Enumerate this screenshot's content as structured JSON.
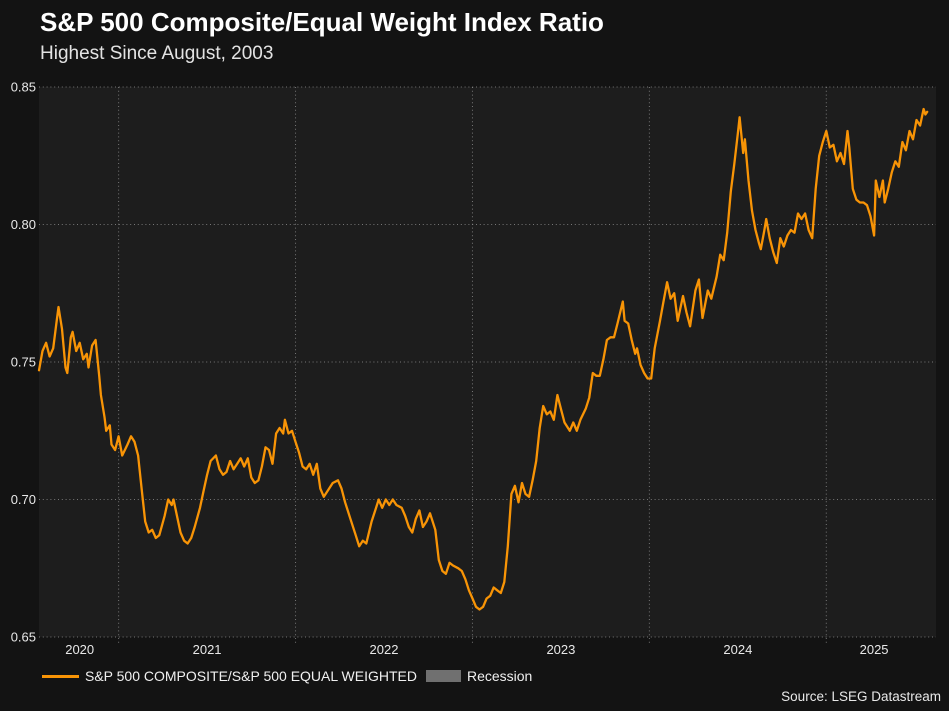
{
  "header": {
    "title": "S&P 500 Composite/Equal Weight Index Ratio",
    "subtitle": "Highest Since August, 2003"
  },
  "legend": {
    "series_label": "S&P 500 COMPOSITE/S&P 500 EQUAL WEIGHTED",
    "recession_label": "Recession"
  },
  "source": "Source: LSEG Datastream",
  "colors": {
    "line": "#F89406",
    "recession_swatch": "#707070",
    "page_bg": "#131313",
    "plot_bg": "#1D1D1D",
    "grid": "#9E9E9E",
    "tick_text": "#E8E8E8",
    "title_text": "#FFFFFF"
  },
  "chart_data": {
    "type": "line",
    "title": "S&P 500 Composite/Equal Weight Index Ratio",
    "subtitle": "Highest Since August, 2003",
    "xlabel": "",
    "ylabel": "",
    "grid": "dotted",
    "legend_position": "bottom-left",
    "ylim": [
      0.65,
      0.85
    ],
    "xlim": [
      2020.55,
      2025.62
    ],
    "y_ticks": [
      0.85,
      0.8,
      0.75,
      0.7,
      0.65
    ],
    "x_gridline_years": [
      2021,
      2022,
      2023,
      2024,
      2025
    ],
    "x_tick_labels": [
      {
        "label": "2020",
        "t": 2020.78
      },
      {
        "label": "2021",
        "t": 2021.5
      },
      {
        "label": "2022",
        "t": 2022.5
      },
      {
        "label": "2023",
        "t": 2023.5
      },
      {
        "label": "2024",
        "t": 2024.5
      },
      {
        "label": "2025",
        "t": 2025.27
      }
    ],
    "series": [
      {
        "name": "S&P 500 COMPOSITE/S&P 500 EQUAL WEIGHTED",
        "color": "#F89406",
        "points": [
          [
            2020.55,
            0.747
          ],
          [
            2020.57,
            0.754
          ],
          [
            2020.59,
            0.757
          ],
          [
            2020.61,
            0.752
          ],
          [
            2020.63,
            0.755
          ],
          [
            2020.65,
            0.765
          ],
          [
            2020.66,
            0.77
          ],
          [
            2020.68,
            0.762
          ],
          [
            2020.7,
            0.748
          ],
          [
            2020.71,
            0.746
          ],
          [
            2020.73,
            0.759
          ],
          [
            2020.74,
            0.761
          ],
          [
            2020.76,
            0.754
          ],
          [
            2020.78,
            0.757
          ],
          [
            2020.8,
            0.751
          ],
          [
            2020.82,
            0.753
          ],
          [
            2020.83,
            0.748
          ],
          [
            2020.85,
            0.756
          ],
          [
            2020.87,
            0.758
          ],
          [
            2020.89,
            0.745
          ],
          [
            2020.9,
            0.738
          ],
          [
            2020.92,
            0.73
          ],
          [
            2020.93,
            0.725
          ],
          [
            2020.95,
            0.727
          ],
          [
            2020.96,
            0.72
          ],
          [
            2020.98,
            0.718
          ],
          [
            2021.0,
            0.723
          ],
          [
            2021.02,
            0.716
          ],
          [
            2021.05,
            0.72
          ],
          [
            2021.07,
            0.723
          ],
          [
            2021.09,
            0.721
          ],
          [
            2021.11,
            0.716
          ],
          [
            2021.13,
            0.704
          ],
          [
            2021.15,
            0.692
          ],
          [
            2021.17,
            0.688
          ],
          [
            2021.19,
            0.689
          ],
          [
            2021.21,
            0.686
          ],
          [
            2021.23,
            0.687
          ],
          [
            2021.26,
            0.694
          ],
          [
            2021.28,
            0.7
          ],
          [
            2021.3,
            0.698
          ],
          [
            2021.31,
            0.7
          ],
          [
            2021.33,
            0.694
          ],
          [
            2021.35,
            0.688
          ],
          [
            2021.37,
            0.685
          ],
          [
            2021.39,
            0.684
          ],
          [
            2021.41,
            0.686
          ],
          [
            2021.43,
            0.69
          ],
          [
            2021.46,
            0.697
          ],
          [
            2021.48,
            0.703
          ],
          [
            2021.5,
            0.709
          ],
          [
            2021.52,
            0.714
          ],
          [
            2021.55,
            0.716
          ],
          [
            2021.57,
            0.711
          ],
          [
            2021.59,
            0.709
          ],
          [
            2021.61,
            0.71
          ],
          [
            2021.63,
            0.714
          ],
          [
            2021.65,
            0.711
          ],
          [
            2021.67,
            0.713
          ],
          [
            2021.69,
            0.715
          ],
          [
            2021.71,
            0.712
          ],
          [
            2021.73,
            0.715
          ],
          [
            2021.75,
            0.708
          ],
          [
            2021.77,
            0.706
          ],
          [
            2021.79,
            0.707
          ],
          [
            2021.81,
            0.712
          ],
          [
            2021.83,
            0.719
          ],
          [
            2021.85,
            0.718
          ],
          [
            2021.87,
            0.713
          ],
          [
            2021.89,
            0.724
          ],
          [
            2021.91,
            0.726
          ],
          [
            2021.93,
            0.724
          ],
          [
            2021.94,
            0.729
          ],
          [
            2021.96,
            0.724
          ],
          [
            2021.98,
            0.725
          ],
          [
            2022.0,
            0.721
          ],
          [
            2022.02,
            0.717
          ],
          [
            2022.04,
            0.712
          ],
          [
            2022.06,
            0.711
          ],
          [
            2022.08,
            0.713
          ],
          [
            2022.1,
            0.709
          ],
          [
            2022.12,
            0.713
          ],
          [
            2022.14,
            0.704
          ],
          [
            2022.16,
            0.701
          ],
          [
            2022.18,
            0.703
          ],
          [
            2022.21,
            0.706
          ],
          [
            2022.24,
            0.707
          ],
          [
            2022.26,
            0.704
          ],
          [
            2022.28,
            0.699
          ],
          [
            2022.31,
            0.693
          ],
          [
            2022.34,
            0.687
          ],
          [
            2022.36,
            0.683
          ],
          [
            2022.38,
            0.685
          ],
          [
            2022.4,
            0.684
          ],
          [
            2022.43,
            0.692
          ],
          [
            2022.45,
            0.696
          ],
          [
            2022.47,
            0.7
          ],
          [
            2022.49,
            0.697
          ],
          [
            2022.51,
            0.7
          ],
          [
            2022.53,
            0.698
          ],
          [
            2022.55,
            0.7
          ],
          [
            2022.57,
            0.698
          ],
          [
            2022.6,
            0.697
          ],
          [
            2022.62,
            0.694
          ],
          [
            2022.64,
            0.69
          ],
          [
            2022.66,
            0.688
          ],
          [
            2022.68,
            0.693
          ],
          [
            2022.7,
            0.696
          ],
          [
            2022.72,
            0.69
          ],
          [
            2022.74,
            0.692
          ],
          [
            2022.76,
            0.695
          ],
          [
            2022.79,
            0.689
          ],
          [
            2022.81,
            0.678
          ],
          [
            2022.83,
            0.674
          ],
          [
            2022.85,
            0.673
          ],
          [
            2022.87,
            0.677
          ],
          [
            2022.89,
            0.676
          ],
          [
            2022.92,
            0.675
          ],
          [
            2022.94,
            0.674
          ],
          [
            2022.96,
            0.671
          ],
          [
            2022.98,
            0.667
          ],
          [
            2023.0,
            0.664
          ],
          [
            2023.02,
            0.661
          ],
          [
            2023.04,
            0.66
          ],
          [
            2023.06,
            0.661
          ],
          [
            2023.08,
            0.664
          ],
          [
            2023.1,
            0.665
          ],
          [
            2023.12,
            0.668
          ],
          [
            2023.14,
            0.667
          ],
          [
            2023.16,
            0.666
          ],
          [
            2023.18,
            0.67
          ],
          [
            2023.2,
            0.683
          ],
          [
            2023.22,
            0.702
          ],
          [
            2023.24,
            0.705
          ],
          [
            2023.26,
            0.699
          ],
          [
            2023.28,
            0.706
          ],
          [
            2023.3,
            0.702
          ],
          [
            2023.32,
            0.701
          ],
          [
            2023.34,
            0.707
          ],
          [
            2023.36,
            0.714
          ],
          [
            2023.38,
            0.726
          ],
          [
            2023.4,
            0.734
          ],
          [
            2023.42,
            0.731
          ],
          [
            2023.44,
            0.732
          ],
          [
            2023.46,
            0.729
          ],
          [
            2023.48,
            0.738
          ],
          [
            2023.5,
            0.733
          ],
          [
            2023.52,
            0.728
          ],
          [
            2023.55,
            0.725
          ],
          [
            2023.57,
            0.728
          ],
          [
            2023.59,
            0.725
          ],
          [
            2023.61,
            0.729
          ],
          [
            2023.64,
            0.733
          ],
          [
            2023.66,
            0.737
          ],
          [
            2023.68,
            0.746
          ],
          [
            2023.7,
            0.745
          ],
          [
            2023.72,
            0.745
          ],
          [
            2023.74,
            0.751
          ],
          [
            2023.76,
            0.758
          ],
          [
            2023.78,
            0.759
          ],
          [
            2023.8,
            0.759
          ],
          [
            2023.82,
            0.764
          ],
          [
            2023.85,
            0.772
          ],
          [
            2023.86,
            0.765
          ],
          [
            2023.88,
            0.764
          ],
          [
            2023.9,
            0.758
          ],
          [
            2023.92,
            0.753
          ],
          [
            2023.93,
            0.755
          ],
          [
            2023.95,
            0.749
          ],
          [
            2023.97,
            0.746
          ],
          [
            2023.99,
            0.744
          ],
          [
            2024.01,
            0.744
          ],
          [
            2024.03,
            0.755
          ],
          [
            2024.06,
            0.765
          ],
          [
            2024.08,
            0.772
          ],
          [
            2024.1,
            0.779
          ],
          [
            2024.12,
            0.773
          ],
          [
            2024.14,
            0.775
          ],
          [
            2024.16,
            0.765
          ],
          [
            2024.19,
            0.774
          ],
          [
            2024.21,
            0.768
          ],
          [
            2024.23,
            0.763
          ],
          [
            2024.26,
            0.776
          ],
          [
            2024.28,
            0.78
          ],
          [
            2024.3,
            0.766
          ],
          [
            2024.33,
            0.776
          ],
          [
            2024.35,
            0.773
          ],
          [
            2024.38,
            0.781
          ],
          [
            2024.4,
            0.789
          ],
          [
            2024.42,
            0.787
          ],
          [
            2024.44,
            0.797
          ],
          [
            2024.46,
            0.812
          ],
          [
            2024.48,
            0.822
          ],
          [
            2024.5,
            0.833
          ],
          [
            2024.51,
            0.839
          ],
          [
            2024.53,
            0.826
          ],
          [
            2024.54,
            0.831
          ],
          [
            2024.56,
            0.816
          ],
          [
            2024.58,
            0.805
          ],
          [
            2024.6,
            0.798
          ],
          [
            2024.62,
            0.793
          ],
          [
            2024.63,
            0.791
          ],
          [
            2024.65,
            0.798
          ],
          [
            2024.66,
            0.802
          ],
          [
            2024.68,
            0.795
          ],
          [
            2024.7,
            0.79
          ],
          [
            2024.72,
            0.786
          ],
          [
            2024.74,
            0.795
          ],
          [
            2024.76,
            0.792
          ],
          [
            2024.78,
            0.796
          ],
          [
            2024.8,
            0.798
          ],
          [
            2024.82,
            0.797
          ],
          [
            2024.84,
            0.804
          ],
          [
            2024.86,
            0.802
          ],
          [
            2024.88,
            0.804
          ],
          [
            2024.9,
            0.798
          ],
          [
            2024.92,
            0.795
          ],
          [
            2024.94,
            0.813
          ],
          [
            2024.96,
            0.825
          ],
          [
            2024.98,
            0.83
          ],
          [
            2025.0,
            0.834
          ],
          [
            2025.02,
            0.828
          ],
          [
            2025.04,
            0.829
          ],
          [
            2025.06,
            0.823
          ],
          [
            2025.08,
            0.826
          ],
          [
            2025.1,
            0.822
          ],
          [
            2025.12,
            0.834
          ],
          [
            2025.13,
            0.828
          ],
          [
            2025.15,
            0.813
          ],
          [
            2025.17,
            0.809
          ],
          [
            2025.19,
            0.808
          ],
          [
            2025.21,
            0.808
          ],
          [
            2025.23,
            0.807
          ],
          [
            2025.25,
            0.803
          ],
          [
            2025.27,
            0.796
          ],
          [
            2025.28,
            0.816
          ],
          [
            2025.3,
            0.81
          ],
          [
            2025.32,
            0.816
          ],
          [
            2025.33,
            0.808
          ],
          [
            2025.35,
            0.813
          ],
          [
            2025.37,
            0.819
          ],
          [
            2025.39,
            0.823
          ],
          [
            2025.41,
            0.821
          ],
          [
            2025.43,
            0.83
          ],
          [
            2025.45,
            0.827
          ],
          [
            2025.47,
            0.834
          ],
          [
            2025.49,
            0.831
          ],
          [
            2025.51,
            0.838
          ],
          [
            2025.53,
            0.836
          ],
          [
            2025.55,
            0.842
          ],
          [
            2025.56,
            0.84
          ],
          [
            2025.57,
            0.841
          ]
        ]
      }
    ]
  }
}
